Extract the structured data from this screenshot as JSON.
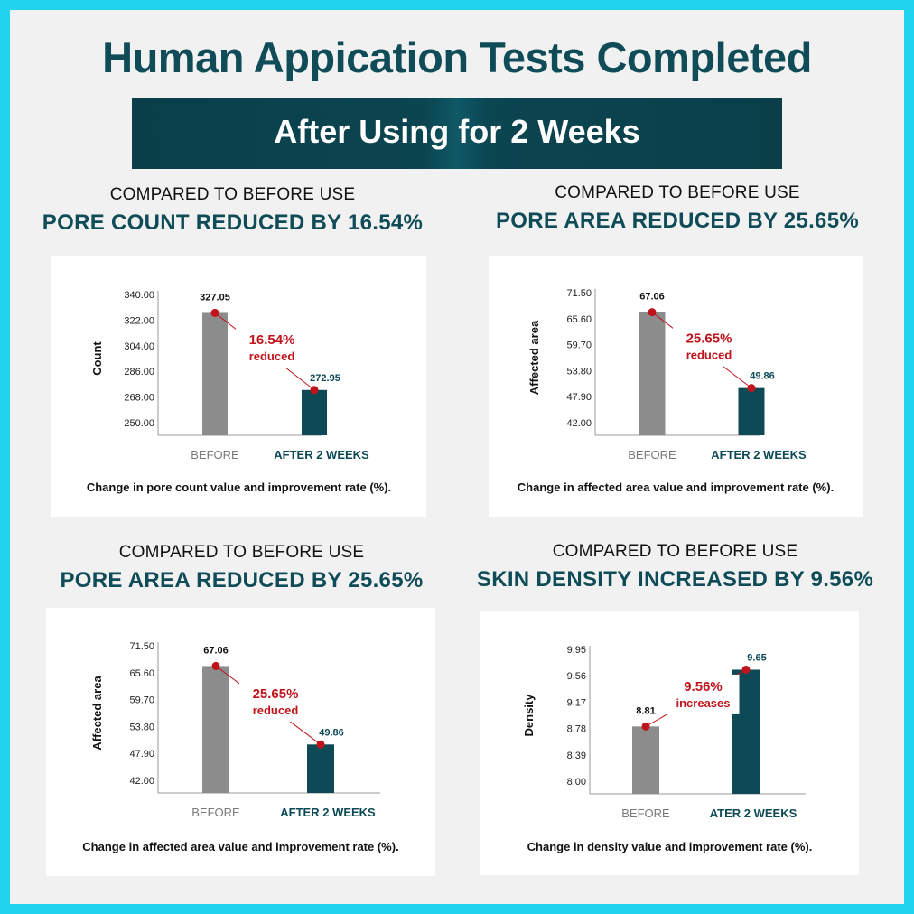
{
  "title": "Human Appication Tests Completed",
  "banner": "After Using for 2 Weeks",
  "colors": {
    "before": "#8c8c8c",
    "after": "#0d4a56",
    "accent": "#c0141c",
    "title": "#0f4c58"
  },
  "panels": [
    {
      "sub": "COMPARED TO BEFORE USE",
      "headline": "PORE COUNT REDUCED BY 16.54%",
      "caption": "Change in pore count value and improvement rate (%)."
    },
    {
      "sub": "COMPARED TO BEFORE USE",
      "headline": "PORE AREA REDUCED BY 25.65%",
      "caption": "Change in affected area value and improvement rate (%)."
    },
    {
      "sub": "COMPARED TO BEFORE USE",
      "headline": "PORE AREA REDUCED BY 25.65%",
      "caption": "Change in affected area value and improvement rate (%)."
    },
    {
      "sub": "COMPARED TO BEFORE USE",
      "headline": "SKIN DENSITY INCREASED BY 9.56%",
      "caption": "Change in density value and improvement rate (%)."
    }
  ],
  "chart_data": [
    {
      "type": "bar",
      "title": "",
      "xlabel": "",
      "ylabel": "Count",
      "categories": [
        "BEFORE",
        "AFTER 2 WEEKS"
      ],
      "values": [
        327.05,
        272.95
      ],
      "value_labels": [
        "327.05",
        "272.95"
      ],
      "yticks": [
        "340.00",
        "322.00",
        "304.00",
        "286.00",
        "268.00",
        "250.00"
      ],
      "ylim": [
        250,
        340
      ],
      "annotation": [
        "16.54%",
        "reduced"
      ]
    },
    {
      "type": "bar",
      "title": "",
      "xlabel": "",
      "ylabel": "Affected area",
      "categories": [
        "BEFORE",
        "AFTER 2 WEEKS"
      ],
      "values": [
        67.06,
        49.86
      ],
      "value_labels": [
        "67.06",
        "49.86"
      ],
      "yticks": [
        "71.50",
        "65.60",
        "59.70",
        "53.80",
        "47.90",
        "42.00"
      ],
      "ylim": [
        42,
        71.5
      ],
      "annotation": [
        "25.65%",
        "reduced"
      ]
    },
    {
      "type": "bar",
      "title": "",
      "xlabel": "",
      "ylabel": "Affected area",
      "categories": [
        "BEFORE",
        "AFTER 2 WEEKS"
      ],
      "values": [
        67.06,
        49.86
      ],
      "value_labels": [
        "67.06",
        "49.86"
      ],
      "yticks": [
        "71.50",
        "65.60",
        "59.70",
        "53.80",
        "47.90",
        "42.00"
      ],
      "ylim": [
        42,
        71.5
      ],
      "annotation": [
        "25.65%",
        "reduced"
      ]
    },
    {
      "type": "bar",
      "title": "",
      "xlabel": "",
      "ylabel": "Density",
      "categories": [
        "BEFORE",
        "ATER 2 WEEKS"
      ],
      "values": [
        8.81,
        9.65
      ],
      "value_labels": [
        "8.81",
        "9.65"
      ],
      "yticks": [
        "9.95",
        "9.56",
        "9.17",
        "8.78",
        "8.39",
        "8.00"
      ],
      "ylim": [
        8.0,
        9.95
      ],
      "annotation": [
        "9.56%",
        "increases"
      ]
    }
  ]
}
